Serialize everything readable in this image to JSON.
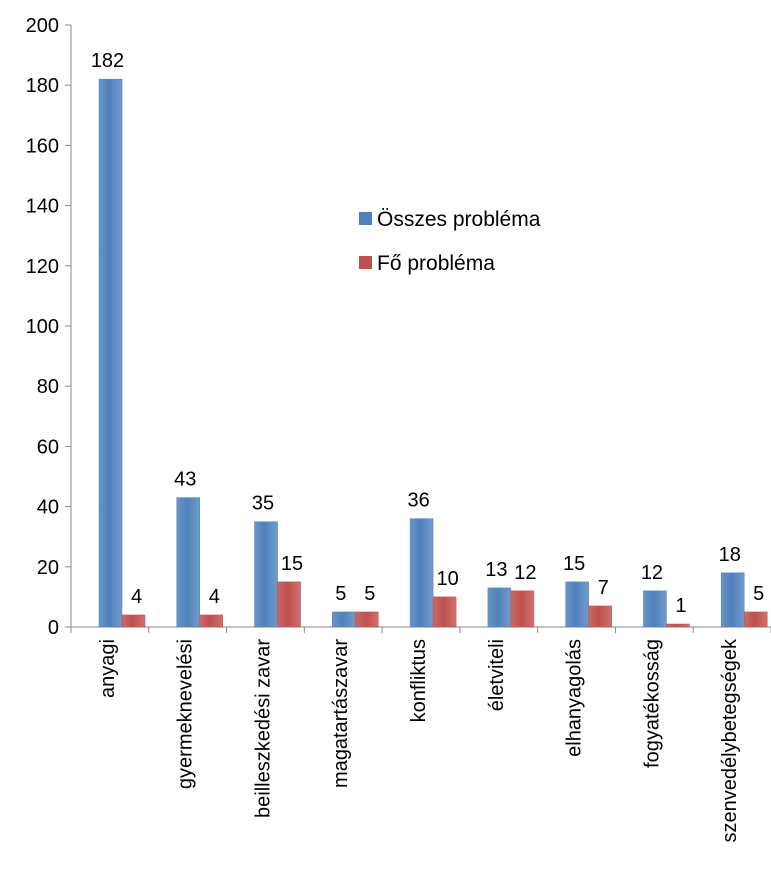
{
  "chart_data": {
    "type": "bar",
    "categories": [
      "anyagi",
      "gyermeknevelési",
      "beilleszkedési zavar",
      "magatartászavar",
      "konfliktus",
      "életviteli",
      "elhanyagolás",
      "fogyatékosság",
      "szenvedélybetegségek"
    ],
    "series": [
      {
        "name": "Összes probléma",
        "color": "#4F81BD",
        "values": [
          182,
          43,
          35,
          5,
          36,
          13,
          15,
          12,
          18
        ]
      },
      {
        "name": "Fő probléma",
        "color": "#C0504D",
        "values": [
          4,
          4,
          15,
          5,
          10,
          12,
          7,
          1,
          5
        ]
      }
    ],
    "ylim": [
      0,
      200
    ],
    "yticks": [
      0,
      20,
      40,
      60,
      80,
      100,
      120,
      140,
      160,
      180,
      200
    ],
    "grid": false,
    "legend_position": "center-right",
    "data_labels": true
  }
}
